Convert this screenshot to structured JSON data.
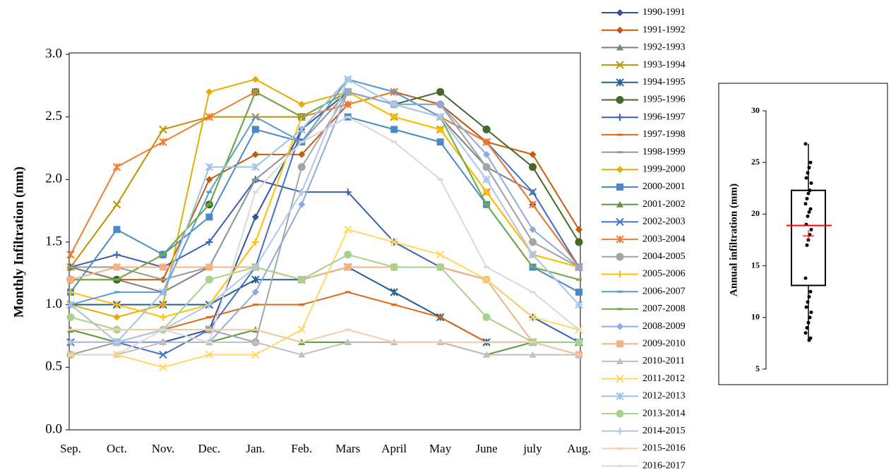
{
  "chart_data": [
    {
      "type": "line",
      "ylabel": "Monthly Infiltration (mm)",
      "categories": [
        "Sep.",
        "Oct.",
        "Nov.",
        "Dec.",
        "Jan.",
        "Feb.",
        "Mars",
        "April",
        "May",
        "June",
        "july",
        "Aug."
      ],
      "ylim": [
        0,
        3
      ],
      "yticks": [
        {
          "value": 0,
          "label": "0.0"
        },
        {
          "value": 0.5,
          "label": "0.5"
        },
        {
          "value": 1,
          "label": "1.0"
        },
        {
          "value": 1.5,
          "label": "1.5"
        },
        {
          "value": 2,
          "label": "2.0"
        },
        {
          "value": 2.5,
          "label": "2.5"
        },
        {
          "value": 3,
          "label": "3.0"
        }
      ],
      "legend": "right",
      "series": [
        {
          "name": "1990-1991",
          "color": "#2f5597",
          "marker": "diamond",
          "values": [
            0.7,
            0.7,
            0.7,
            0.8,
            1.7,
            2.4,
            2.7,
            2.6,
            2.6,
            2.3,
            1.8,
            1.3
          ]
        },
        {
          "name": "1991-1992",
          "color": "#c55a11",
          "marker": "diamond",
          "values": [
            1.3,
            1.2,
            1.2,
            2.0,
            2.2,
            2.2,
            2.6,
            2.7,
            2.6,
            2.3,
            2.2,
            1.6
          ]
        },
        {
          "name": "1992-1993",
          "color": "#7f7f7f",
          "marker": "triangle",
          "values": [
            1.3,
            1.2,
            1.1,
            1.3,
            2.0,
            2.3,
            2.7,
            2.6,
            2.5,
            2.1,
            1.9,
            1.3
          ]
        },
        {
          "name": "1993-1994",
          "color": "#bf9000",
          "marker": "x",
          "values": [
            1.3,
            1.8,
            2.4,
            2.5,
            2.5,
            2.5,
            2.7,
            2.5,
            2.4,
            1.9,
            1.4,
            1.3
          ]
        },
        {
          "name": "1994-1995",
          "color": "#255e91",
          "marker": "star",
          "values": [
            1.0,
            1.0,
            1.0,
            1.0,
            1.2,
            1.2,
            1.3,
            1.1,
            0.9,
            0.7,
            0.7,
            0.7
          ]
        },
        {
          "name": "1995-1996",
          "color": "#43682b",
          "marker": "circle",
          "values": [
            1.2,
            1.2,
            1.4,
            1.8,
            2.7,
            2.5,
            2.7,
            2.6,
            2.7,
            2.4,
            2.1,
            1.5
          ]
        },
        {
          "name": "1996-1997",
          "color": "#3a5fb0",
          "marker": "plus",
          "values": [
            1.3,
            1.4,
            1.3,
            1.5,
            2.0,
            1.9,
            1.9,
            1.5,
            1.3,
            1.2,
            0.9,
            0.7
          ]
        },
        {
          "name": "1997-1998",
          "color": "#d9691e",
          "marker": "dash",
          "values": [
            0.6,
            0.7,
            0.8,
            0.9,
            1.0,
            1.0,
            1.1,
            1.0,
            0.9,
            0.7,
            0.7,
            0.6
          ]
        },
        {
          "name": "1998-1999",
          "color": "#999999",
          "marker": "dash",
          "values": [
            1.3,
            1.3,
            1.2,
            1.3,
            2.0,
            2.3,
            2.7,
            2.6,
            2.6,
            2.1,
            1.5,
            1.3
          ]
        },
        {
          "name": "1999-2000",
          "color": "#e6ac00",
          "marker": "diamond",
          "values": [
            1.0,
            0.9,
            1.0,
            2.7,
            2.8,
            2.6,
            2.7,
            2.5,
            2.4,
            1.9,
            1.4,
            1.3
          ]
        },
        {
          "name": "2000-2001",
          "color": "#4a89c8",
          "marker": "square",
          "values": [
            1.1,
            1.6,
            1.4,
            1.7,
            2.4,
            2.3,
            2.5,
            2.4,
            2.3,
            1.8,
            1.3,
            1.1
          ]
        },
        {
          "name": "2001-2002",
          "color": "#5b9a3a",
          "marker": "triangle",
          "values": [
            0.8,
            0.7,
            0.7,
            0.7,
            0.8,
            0.7,
            0.7,
            0.7,
            0.7,
            0.6,
            0.7,
            0.6
          ]
        },
        {
          "name": "2002-2003",
          "color": "#4472c4",
          "marker": "x",
          "values": [
            0.7,
            0.7,
            0.6,
            0.8,
            1.3,
            2.4,
            2.8,
            2.7,
            2.5,
            2.3,
            1.9,
            1.3
          ]
        },
        {
          "name": "2003-2004",
          "color": "#ed7d31",
          "marker": "star",
          "values": [
            1.4,
            2.1,
            2.3,
            2.5,
            2.7,
            2.5,
            2.6,
            2.7,
            2.5,
            2.3,
            1.8,
            1.3
          ]
        },
        {
          "name": "2004-2005",
          "color": "#a5a5a5",
          "marker": "circle",
          "values": [
            0.6,
            0.7,
            0.8,
            0.8,
            0.7,
            2.1,
            2.7,
            2.6,
            2.6,
            2.1,
            1.5,
            1.3
          ]
        },
        {
          "name": "2005-2006",
          "color": "#ffc000",
          "marker": "plus",
          "values": [
            1.1,
            1.0,
            0.9,
            1.0,
            1.5,
            2.5,
            2.7,
            2.5,
            2.4,
            1.9,
            1.4,
            1.3
          ]
        },
        {
          "name": "2006-2007",
          "color": "#5b9bd5",
          "marker": "dash",
          "values": [
            1.0,
            1.1,
            1.1,
            1.9,
            2.5,
            2.3,
            2.8,
            2.7,
            2.5,
            1.8,
            1.3,
            1.2
          ]
        },
        {
          "name": "2007-2008",
          "color": "#70ad47",
          "marker": "dash",
          "values": [
            1.2,
            1.2,
            1.4,
            1.8,
            2.7,
            2.5,
            2.7,
            2.6,
            2.5,
            1.8,
            1.3,
            1.2
          ]
        },
        {
          "name": "2008-2009",
          "color": "#8faadc",
          "marker": "diamond",
          "values": [
            0.7,
            0.7,
            0.7,
            0.7,
            1.1,
            1.8,
            2.7,
            2.6,
            2.6,
            2.2,
            1.6,
            1.3
          ]
        },
        {
          "name": "2009-2010",
          "color": "#f4b183",
          "marker": "square",
          "values": [
            1.2,
            1.3,
            1.3,
            1.3,
            1.3,
            1.2,
            1.3,
            1.3,
            1.3,
            1.2,
            0.7,
            0.6
          ]
        },
        {
          "name": "2010-2011",
          "color": "#c0c0c0",
          "marker": "triangle",
          "values": [
            0.6,
            0.6,
            0.7,
            0.7,
            0.7,
            0.6,
            0.7,
            0.7,
            0.7,
            0.6,
            0.6,
            0.6
          ]
        },
        {
          "name": "2011-2012",
          "color": "#ffd966",
          "marker": "x",
          "values": [
            0.6,
            0.6,
            0.5,
            0.6,
            0.6,
            0.8,
            1.6,
            1.5,
            1.4,
            1.2,
            0.9,
            0.8
          ]
        },
        {
          "name": "2012-2013",
          "color": "#9dc3e6",
          "marker": "star",
          "values": [
            1.0,
            0.7,
            1.1,
            2.1,
            2.1,
            2.4,
            2.8,
            2.6,
            2.5,
            2.0,
            1.4,
            1.0
          ]
        },
        {
          "name": "2013-2014",
          "color": "#a9d18e",
          "marker": "circle",
          "values": [
            0.9,
            0.8,
            0.8,
            1.2,
            1.3,
            1.2,
            1.4,
            1.3,
            1.3,
            0.9,
            0.7,
            0.7
          ]
        },
        {
          "name": "2014-2015",
          "color": "#b4c7e7",
          "marker": "plus",
          "values": [
            0.7,
            0.7,
            0.8,
            1.0,
            1.3,
            1.9,
            2.8,
            2.6,
            2.5,
            2.0,
            1.4,
            1.0
          ]
        },
        {
          "name": "2015-2016",
          "color": "#f8cbad",
          "marker": "dash",
          "values": [
            0.8,
            0.8,
            0.8,
            0.8,
            0.8,
            0.7,
            0.8,
            0.7,
            0.7,
            0.7,
            0.7,
            0.6
          ]
        },
        {
          "name": "2016-2017",
          "color": "#d9d9d9",
          "marker": "dash",
          "values": [
            0.6,
            0.6,
            0.8,
            0.7,
            1.9,
            2.3,
            2.5,
            2.3,
            2.0,
            1.3,
            1.1,
            0.8
          ]
        }
      ]
    },
    {
      "type": "box",
      "ylabel": "Annual infiltration (mm)",
      "ylim": [
        5,
        30
      ],
      "yticks": [
        5,
        10,
        15,
        20,
        25,
        30
      ],
      "whisker_low": 7.8,
      "q1": 13.1,
      "median": 18.9,
      "q3": 22.3,
      "whisker_high": 26.8,
      "mean": 17.9,
      "box_color": "#000000",
      "stat_color": "#ff0000",
      "points": [
        26.8,
        25,
        24.5,
        24,
        23.5,
        23,
        22.3,
        22,
        21.5,
        21,
        20.5,
        20.2,
        19.8,
        19,
        18.5,
        18,
        17.5,
        17,
        13.8,
        12.5,
        12,
        11.5,
        11,
        10.5,
        10,
        9.5,
        9,
        8.5,
        8,
        7.8
      ]
    }
  ]
}
